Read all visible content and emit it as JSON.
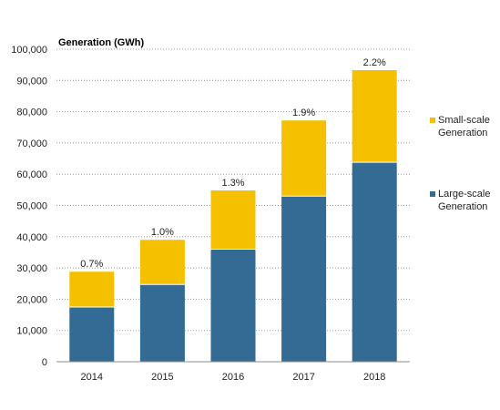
{
  "chart_data": {
    "type": "bar",
    "stacked": true,
    "ylabel": "Generation (GWh)",
    "ylim": [
      0,
      100000
    ],
    "yticks": [
      0,
      10000,
      20000,
      30000,
      40000,
      50000,
      60000,
      70000,
      80000,
      90000,
      100000
    ],
    "ytick_labels": [
      "0",
      "10,000",
      "20,000",
      "30,000",
      "40,000",
      "50,000",
      "60,000",
      "70,000",
      "80,000",
      "90,000",
      "100,000"
    ],
    "grid": "horizontal dotted",
    "legend_position": "right",
    "categories": [
      "2014",
      "2015",
      "2016",
      "2017",
      "2018"
    ],
    "series": [
      {
        "name": "Large-scale Generation",
        "color": "#336B95",
        "values": [
          17500,
          24700,
          36000,
          53000,
          63800
        ]
      },
      {
        "name": "Small-scale Generation",
        "color": "#F5C000",
        "values": [
          11300,
          14300,
          18800,
          24200,
          29500
        ]
      }
    ],
    "data_labels": [
      "0.7%",
      "1.0%",
      "1.3%",
      "1.9%",
      "2.2%"
    ]
  }
}
